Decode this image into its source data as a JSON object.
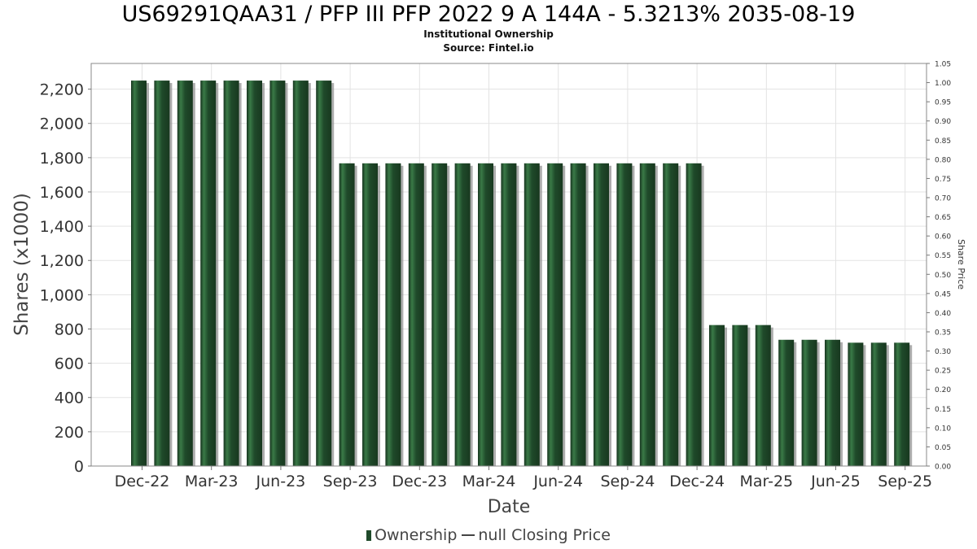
{
  "chart_data": {
    "type": "bar",
    "title": "US69291QAA31 / PFP III PFP 2022 9 A 144A - 5.3213% 2035-08-19",
    "subtitle": "Institutional Ownership",
    "source": "Source: Fintel.io",
    "xlabel": "Date",
    "ylabel": "Shares (x1000)",
    "y2label": "Share Price",
    "ylim": [
      0,
      2350
    ],
    "y2lim": [
      0,
      1.05
    ],
    "yticks": [
      "0",
      "200",
      "400",
      "600",
      "800",
      "1,000",
      "1,200",
      "1,400",
      "1,600",
      "1,800",
      "2,000",
      "2,200"
    ],
    "y2ticks": [
      "0.00",
      "0.05",
      "0.10",
      "0.15",
      "0.20",
      "0.25",
      "0.30",
      "0.35",
      "0.40",
      "0.45",
      "0.50",
      "0.55",
      "0.60",
      "0.65",
      "0.70",
      "0.75",
      "0.80",
      "0.85",
      "0.90",
      "0.95",
      "1.00",
      "1.05"
    ],
    "xticks": [
      "Dec-22",
      "Mar-23",
      "Jun-23",
      "Sep-23",
      "Dec-23",
      "Mar-24",
      "Jun-24",
      "Sep-24",
      "Dec-24",
      "Mar-25",
      "Jun-25",
      "Sep-25"
    ],
    "grid": true,
    "legend_position": "bottom",
    "series": [
      {
        "name": "Ownership",
        "color": "#1f4a2a",
        "values": [
          2250,
          2250,
          2250,
          2250,
          2250,
          2250,
          2250,
          2250,
          2250,
          1767,
          1767,
          1767,
          1767,
          1767,
          1767,
          1767,
          1767,
          1767,
          1767,
          1767,
          1767,
          1767,
          1767,
          1767,
          1767,
          823,
          823,
          823,
          737,
          737,
          737,
          720,
          720,
          720
        ]
      }
    ]
  },
  "legend": {
    "ownership": "Ownership",
    "price": "null Closing Price"
  }
}
